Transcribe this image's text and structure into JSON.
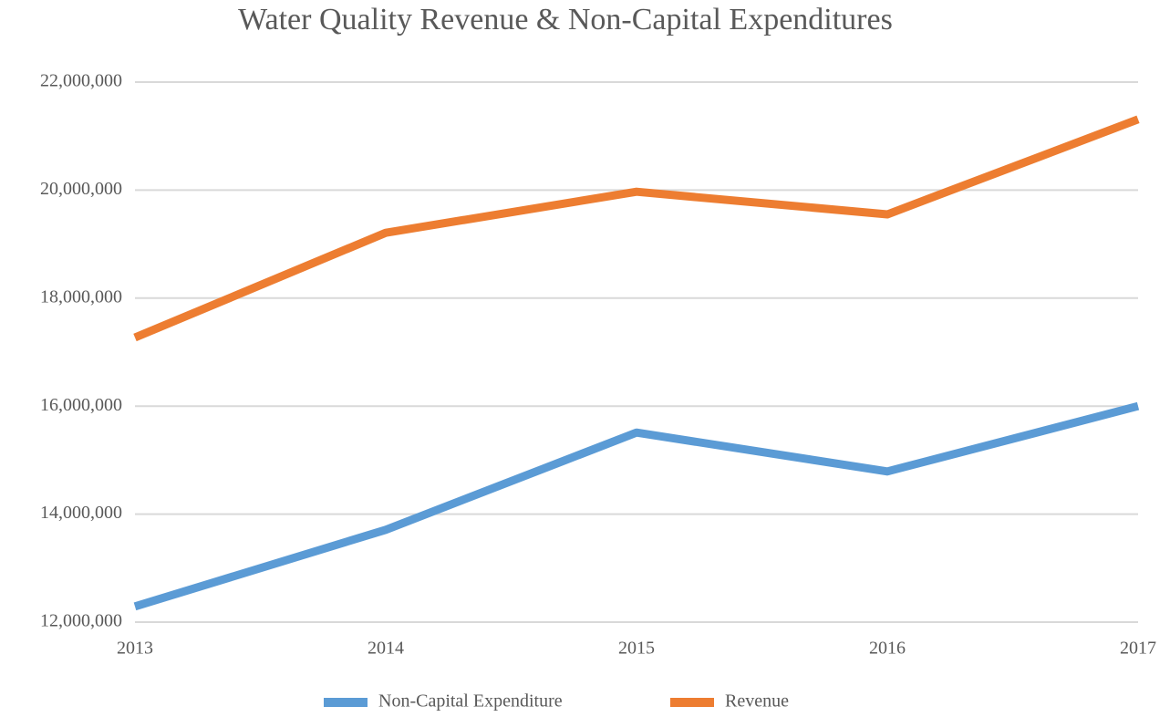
{
  "chart_data": {
    "type": "line",
    "title": "Water Quality Revenue & Non-Capital Expenditures",
    "x": [
      2013,
      2014,
      2015,
      2016,
      2017
    ],
    "xlim": [
      2013,
      2017
    ],
    "xticks": [
      2013,
      2014,
      2015,
      2016,
      2017
    ],
    "series": [
      {
        "name": "Non-Capital Expenditure",
        "color": "#5b9bd5",
        "values": [
          12290000,
          13710000,
          15510000,
          14790000,
          16000000
        ]
      },
      {
        "name": "Revenue",
        "color": "#ed7d31",
        "values": [
          17270000,
          19210000,
          19970000,
          19550000,
          21310000
        ]
      }
    ],
    "ylim": [
      12000000,
      22000000
    ],
    "yticks": [
      {
        "value": 12000000,
        "label": "12,000,000"
      },
      {
        "value": 14000000,
        "label": "14,000,000"
      },
      {
        "value": 16000000,
        "label": "16,000,000"
      },
      {
        "value": 18000000,
        "label": "18,000,000"
      },
      {
        "value": 20000000,
        "label": "20,000,000"
      },
      {
        "value": 22000000,
        "label": "22,000,000"
      }
    ],
    "grid": true,
    "legend": "bottom"
  }
}
